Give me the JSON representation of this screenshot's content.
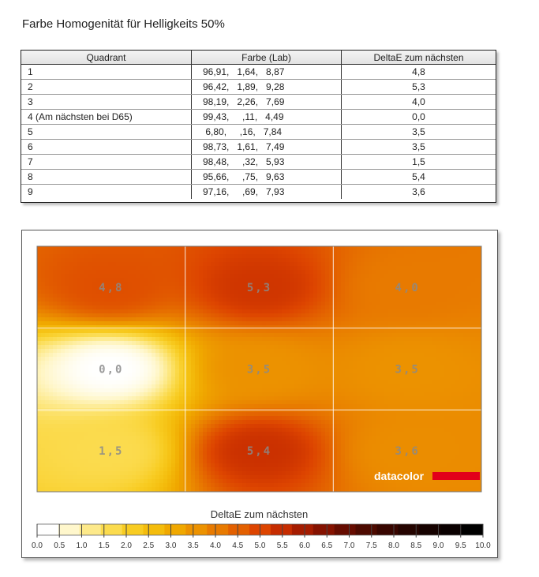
{
  "title": "Farbe Homogenität für Helligkeits 50%",
  "table": {
    "headers": [
      "Quadrant",
      "Farbe (Lab)",
      "DeltaE zum nächsten"
    ],
    "rows": [
      [
        "1",
        "96,91,   1,64,   8,87",
        "4,8"
      ],
      [
        "2",
        "96,42,   1,89,   9,28",
        "5,3"
      ],
      [
        "3",
        "98,19,   2,26,   7,69",
        "4,0"
      ],
      [
        "4 (Am nächsten bei D65)",
        "99,43,     ,11,   4,49",
        "0,0"
      ],
      [
        "5",
        " 6,80,     ,16,   7,84",
        "3,5"
      ],
      [
        "6",
        "98,73,   1,61,   7,49",
        "3,5"
      ],
      [
        "7",
        "98,48,     ,32,   5,93",
        "1,5"
      ],
      [
        "8",
        "95,66,     ,75,   9,63",
        "5,4"
      ],
      [
        "9",
        "97,16,     ,69,   7,93",
        "3,6"
      ]
    ]
  },
  "chart_data": {
    "type": "heatmap",
    "grid": {
      "rows": 3,
      "cols": 3
    },
    "cells": [
      {
        "label": "4,8",
        "value": 4.8
      },
      {
        "label": "5,3",
        "value": 5.3
      },
      {
        "label": "4,0",
        "value": 4.0
      },
      {
        "label": "0,0",
        "value": 0.0
      },
      {
        "label": "3,5",
        "value": 3.5
      },
      {
        "label": "3,5",
        "value": 3.5
      },
      {
        "label": "1,5",
        "value": 1.5
      },
      {
        "label": "5,4",
        "value": 5.4
      },
      {
        "label": "3,6",
        "value": 3.6
      }
    ],
    "legend_title": "DeltaE zum nächsten",
    "scale_min": 0.0,
    "scale_max": 10.0,
    "scale_ticks": [
      "0.0",
      "0.5",
      "1.0",
      "1.5",
      "2.0",
      "2.5",
      "3.0",
      "3.5",
      "4.0",
      "4.5",
      "5.0",
      "5.5",
      "6.0",
      "6.5",
      "7.0",
      "7.5",
      "8.0",
      "8.5",
      "9.0",
      "9.5",
      "10.0"
    ],
    "colors": [
      "#ffffff",
      "#fff7cc",
      "#fde98a",
      "#fbdb4e",
      "#f8cc22",
      "#f4bc0c",
      "#f0a800",
      "#ec9200",
      "#e87a00",
      "#e36000",
      "#dd4400",
      "#c62c00",
      "#a51c00",
      "#851200",
      "#660c00",
      "#4d0a00",
      "#380600",
      "#250400",
      "#160200",
      "#0a0000",
      "#000000"
    ],
    "watermark": "datacolor"
  }
}
